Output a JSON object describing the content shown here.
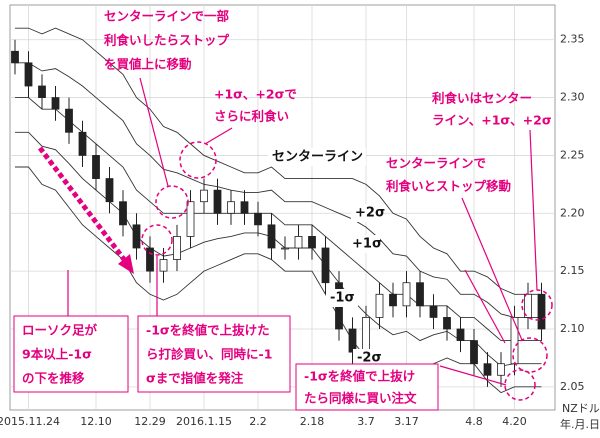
{
  "chart_data": {
    "type": "candlestick",
    "categories": [
      null,
      "2015.11.24",
      null,
      null,
      null,
      null,
      "12.10",
      null,
      null,
      null,
      "12.29",
      null,
      null,
      null,
      "2016.1.15",
      null,
      null,
      null,
      "2.2",
      null,
      null,
      null,
      "2.18",
      null,
      null,
      null,
      "3.7",
      null,
      null,
      "3.17",
      null,
      null,
      null,
      null,
      "4.8",
      null,
      null,
      "4.20",
      null,
      null
    ],
    "open": [
      2.34,
      2.33,
      2.31,
      2.3,
      2.29,
      2.27,
      2.25,
      2.23,
      2.21,
      2.19,
      2.17,
      2.15,
      2.16,
      2.18,
      2.21,
      2.22,
      2.2,
      2.21,
      2.2,
      2.19,
      2.17,
      2.17,
      2.18,
      2.17,
      2.14,
      2.1,
      2.08,
      2.11,
      2.13,
      2.12,
      2.14,
      2.12,
      2.11,
      2.1,
      2.09,
      2.07,
      2.06,
      2.07,
      2.11,
      2.13
    ],
    "high": [
      2.35,
      2.34,
      2.32,
      2.31,
      2.3,
      2.28,
      2.26,
      2.24,
      2.22,
      2.2,
      2.18,
      2.17,
      2.19,
      2.22,
      2.23,
      2.23,
      2.22,
      2.22,
      2.21,
      2.2,
      2.18,
      2.19,
      2.19,
      2.18,
      2.15,
      2.11,
      2.12,
      2.14,
      2.14,
      2.15,
      2.15,
      2.13,
      2.12,
      2.11,
      2.1,
      2.08,
      2.08,
      2.12,
      2.14,
      2.14
    ],
    "low": [
      2.32,
      2.3,
      2.29,
      2.28,
      2.26,
      2.24,
      2.22,
      2.2,
      2.18,
      2.16,
      2.14,
      2.14,
      2.15,
      2.17,
      2.2,
      2.19,
      2.19,
      2.19,
      2.18,
      2.16,
      2.16,
      2.16,
      2.16,
      2.13,
      2.09,
      2.07,
      2.07,
      2.1,
      2.11,
      2.11,
      2.11,
      2.1,
      2.09,
      2.08,
      2.06,
      2.05,
      2.05,
      2.06,
      2.1,
      2.09
    ],
    "close": [
      2.33,
      2.31,
      2.3,
      2.29,
      2.27,
      2.25,
      2.23,
      2.21,
      2.19,
      2.17,
      2.15,
      2.16,
      2.18,
      2.21,
      2.22,
      2.2,
      2.21,
      2.2,
      2.19,
      2.17,
      2.17,
      2.18,
      2.17,
      2.14,
      2.1,
      2.08,
      2.11,
      2.13,
      2.12,
      2.14,
      2.12,
      2.11,
      2.1,
      2.09,
      2.07,
      2.06,
      2.07,
      2.11,
      2.13,
      2.1
    ],
    "up_color": "#ffffff",
    "down_color": "#222222",
    "series": [
      {
        "name": "+2σ",
        "color": "#333333",
        "values": [
          2.36,
          2.36,
          2.355,
          2.36,
          2.355,
          2.35,
          2.34,
          2.33,
          2.32,
          2.3,
          2.29,
          2.275,
          2.27,
          2.26,
          2.25,
          2.245,
          2.24,
          2.235,
          2.235,
          2.24,
          2.23,
          2.23,
          2.23,
          2.23,
          2.23,
          2.23,
          2.225,
          2.215,
          2.2,
          2.195,
          2.18,
          2.17,
          2.165,
          2.15,
          2.15,
          2.145,
          2.135,
          2.13,
          2.13,
          2.13
        ]
      },
      {
        "name": "+1σ",
        "color": "#333333",
        "values": [
          2.33,
          2.33,
          2.323,
          2.325,
          2.318,
          2.31,
          2.3,
          2.29,
          2.28,
          2.26,
          2.25,
          2.238,
          2.235,
          2.23,
          2.225,
          2.223,
          2.22,
          2.218,
          2.218,
          2.22,
          2.21,
          2.21,
          2.21,
          2.205,
          2.2,
          2.195,
          2.188,
          2.178,
          2.165,
          2.163,
          2.15,
          2.145,
          2.143,
          2.13,
          2.13,
          2.123,
          2.113,
          2.11,
          2.11,
          2.11
        ]
      },
      {
        "name": "センターライン",
        "color": "#333333",
        "values": [
          2.3,
          2.3,
          2.29,
          2.29,
          2.28,
          2.27,
          2.26,
          2.25,
          2.24,
          2.22,
          2.21,
          2.2,
          2.2,
          2.2,
          2.2,
          2.2,
          2.2,
          2.2,
          2.2,
          2.2,
          2.19,
          2.19,
          2.19,
          2.18,
          2.17,
          2.16,
          2.15,
          2.14,
          2.13,
          2.13,
          2.12,
          2.12,
          2.12,
          2.11,
          2.11,
          2.1,
          2.09,
          2.09,
          2.09,
          2.09
        ]
      },
      {
        "name": "-1σ",
        "color": "#333333",
        "values": [
          2.27,
          2.27,
          2.258,
          2.255,
          2.243,
          2.23,
          2.22,
          2.21,
          2.2,
          2.18,
          2.17,
          2.163,
          2.165,
          2.17,
          2.175,
          2.178,
          2.18,
          2.183,
          2.183,
          2.18,
          2.17,
          2.17,
          2.17,
          2.155,
          2.14,
          2.125,
          2.113,
          2.103,
          2.095,
          2.098,
          2.09,
          2.095,
          2.098,
          2.09,
          2.09,
          2.078,
          2.068,
          2.07,
          2.07,
          2.07
        ]
      },
      {
        "name": "-2σ",
        "color": "#333333",
        "values": [
          2.24,
          2.24,
          2.225,
          2.22,
          2.205,
          2.19,
          2.18,
          2.17,
          2.16,
          2.14,
          2.13,
          2.125,
          2.13,
          2.14,
          2.15,
          2.155,
          2.16,
          2.165,
          2.165,
          2.16,
          2.15,
          2.15,
          2.15,
          2.13,
          2.11,
          2.09,
          2.075,
          2.065,
          2.06,
          2.065,
          2.06,
          2.07,
          2.075,
          2.07,
          2.07,
          2.055,
          2.045,
          2.05,
          2.05,
          2.05
        ]
      }
    ],
    "ylim": [
      2.03,
      2.38
    ],
    "yticks": [
      2.05,
      {
        "value": 2.1,
        "label": "2.10"
      },
      2.15,
      {
        "value": 2.2,
        "label": "2.20"
      },
      2.25,
      {
        "value": 2.3,
        "label": "2.30"
      },
      2.35
    ],
    "grid": true,
    "y_unit": "NZドル",
    "x_unit": "年.月.日",
    "annotation_color": "#e4007f",
    "annotations": [
      {
        "lines": [
          "センターラインで一部",
          "利食いしたらストップ",
          "を買値上に移動"
        ]
      },
      {
        "lines": [
          "+1σ、+2σで",
          "さらに利食い"
        ]
      },
      {
        "lines": [
          "利食いはセンター",
          "ライン、+1σ、+2σ"
        ]
      },
      {
        "lines": [
          "センターラインで",
          "利食いとストップ移動"
        ]
      },
      {
        "lines": [
          "ローソク足が",
          "9本以上-1σ",
          "の下を推移"
        ]
      },
      {
        "lines": [
          "-1σを終値で上抜けた",
          "ら打診買い、同時に-1",
          "σまで指値を発注"
        ]
      },
      {
        "lines": [
          "-1σを終値で上抜け",
          "たら同様に買い注文"
        ]
      }
    ]
  }
}
